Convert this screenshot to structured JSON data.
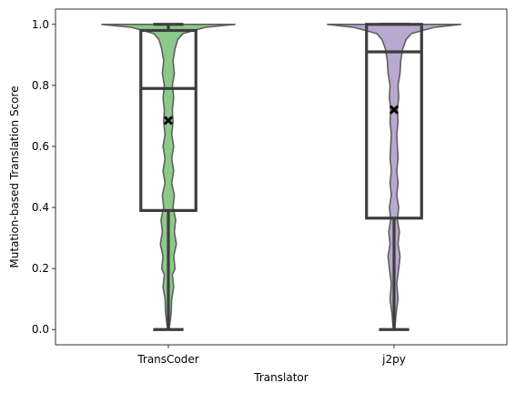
{
  "chart_data": {
    "type": "violin",
    "xlabel": "Translator",
    "ylabel": "Mutation-based Translation Score",
    "categories": [
      "TransCoder",
      "j2py"
    ],
    "ylim": [
      -0.05,
      1.05
    ],
    "yticks": [
      0.0,
      0.2,
      0.4,
      0.6,
      0.8,
      1.0
    ],
    "ytick_labels": [
      "0.0",
      "0.2",
      "0.4",
      "0.6",
      "0.8",
      "1.0"
    ],
    "grid": false,
    "colors": {
      "TransCoder": "#8dc98a",
      "j2py": "#b9a9d1",
      "violin_edge": "#5f5f5f",
      "box": "#3d3d3d",
      "mean_marker": "#000000"
    },
    "series": [
      {
        "name": "TransCoder",
        "box": {
          "whisker_low": 0.0,
          "q1": 0.39,
          "median": 0.79,
          "q3": 0.98,
          "whisker_high": 1.0
        },
        "mean": 0.685,
        "density": [
          [
            0.0,
            0.01
          ],
          [
            0.05,
            0.04
          ],
          [
            0.1,
            0.05
          ],
          [
            0.14,
            0.08
          ],
          [
            0.18,
            0.06
          ],
          [
            0.2,
            0.1
          ],
          [
            0.24,
            0.08
          ],
          [
            0.28,
            0.12
          ],
          [
            0.32,
            0.09
          ],
          [
            0.36,
            0.11
          ],
          [
            0.4,
            0.07
          ],
          [
            0.44,
            0.09
          ],
          [
            0.48,
            0.05
          ],
          [
            0.52,
            0.08
          ],
          [
            0.56,
            0.05
          ],
          [
            0.6,
            0.08
          ],
          [
            0.64,
            0.05
          ],
          [
            0.68,
            0.07
          ],
          [
            0.72,
            0.06
          ],
          [
            0.76,
            0.08
          ],
          [
            0.8,
            0.06
          ],
          [
            0.84,
            0.09
          ],
          [
            0.88,
            0.07
          ],
          [
            0.92,
            0.1
          ],
          [
            0.95,
            0.14
          ],
          [
            0.97,
            0.22
          ],
          [
            0.99,
            0.55
          ],
          [
            1.0,
            1.0
          ]
        ]
      },
      {
        "name": "j2py",
        "box": {
          "whisker_low": 0.0,
          "q1": 0.365,
          "median": 0.91,
          "q3": 1.0,
          "whisker_high": 1.0
        },
        "mean": 0.72,
        "density": [
          [
            0.0,
            0.01
          ],
          [
            0.05,
            0.03
          ],
          [
            0.1,
            0.06
          ],
          [
            0.15,
            0.04
          ],
          [
            0.2,
            0.07
          ],
          [
            0.24,
            0.09
          ],
          [
            0.28,
            0.06
          ],
          [
            0.32,
            0.08
          ],
          [
            0.36,
            0.05
          ],
          [
            0.4,
            0.07
          ],
          [
            0.44,
            0.04
          ],
          [
            0.48,
            0.06
          ],
          [
            0.52,
            0.04
          ],
          [
            0.56,
            0.06
          ],
          [
            0.6,
            0.05
          ],
          [
            0.64,
            0.04
          ],
          [
            0.68,
            0.06
          ],
          [
            0.72,
            0.05
          ],
          [
            0.76,
            0.07
          ],
          [
            0.8,
            0.06
          ],
          [
            0.84,
            0.09
          ],
          [
            0.88,
            0.1
          ],
          [
            0.92,
            0.13
          ],
          [
            0.95,
            0.18
          ],
          [
            0.97,
            0.26
          ],
          [
            0.99,
            0.6
          ],
          [
            1.0,
            1.0
          ]
        ]
      }
    ]
  }
}
